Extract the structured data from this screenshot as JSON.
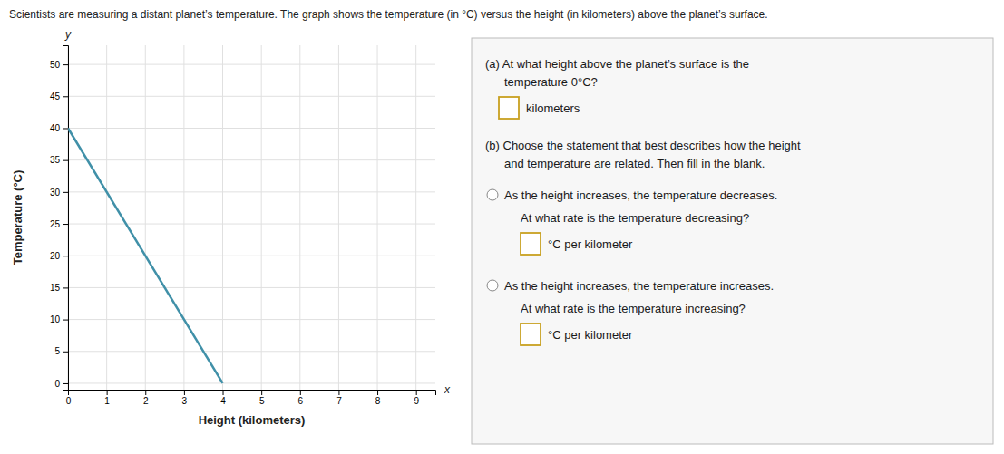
{
  "chart_data": {
    "type": "line",
    "title": "Scientists are measuring a distant planet’s temperature. The graph shows the temperature (in °C) versus the height (in kilometers) above the planet’s surface.",
    "x_label": "Height (kilometers)",
    "y_label": "Temperature (°C)",
    "x": [
      0,
      4
    ],
    "series": [
      {
        "values": [
          40,
          0
        ],
        "color": "#4090a8"
      }
    ],
    "xlim": [
      0,
      9.5
    ],
    "ylim": [
      -1,
      53
    ],
    "xticks": [
      0,
      1,
      2,
      3,
      4,
      5,
      6,
      7,
      8,
      9
    ],
    "yticks": [
      0,
      5,
      10,
      15,
      20,
      25,
      30,
      35,
      40,
      45,
      50
    ],
    "grid": true,
    "annotations": [
      "x",
      "y",
      "(a) At what height above the planet’s surface is the",
      "temperature 0°C?",
      "kilometers",
      "(b) Choose the statement that best describes how the height",
      "and temperature are related. Then fill in the blank.",
      "As the height increases, the temperature decreases.",
      "At what rate is the temperature decreasing?",
      "°C per kilometer",
      "As the height increases, the temperature increases.",
      "At what rate is the temperature increasing?",
      "°C per kilometer"
    ]
  }
}
